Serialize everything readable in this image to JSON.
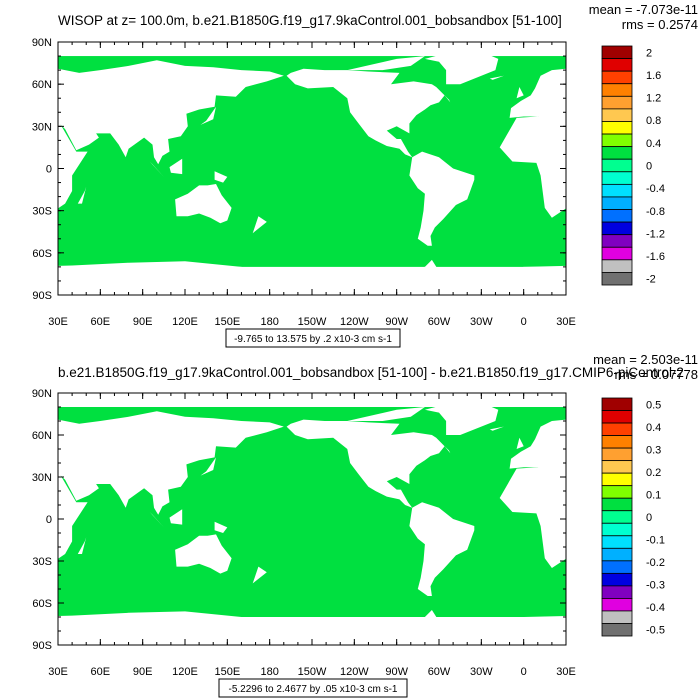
{
  "chart_data": [
    {
      "type": "heatmap",
      "title": "WISOP at z= 100.0m, b.e21.B1850G.f19_g17.9kaControl.001_bobsandbox [51-100]",
      "stats": [
        "mean = -7.073e-11",
        "rms = 0.2574"
      ],
      "subtitle": "-9.765 to 13.575 by .2 x10-3 cm s-1",
      "y_ticks": [
        "90N",
        "60N",
        "30N",
        "0",
        "30S",
        "60S",
        "90S"
      ],
      "x_ticks": [
        "30E",
        "60E",
        "90E",
        "120E",
        "150E",
        "180",
        "150W",
        "120W",
        "90W",
        "60W",
        "30W",
        "0",
        "30E"
      ],
      "ylim": [
        -90,
        90
      ],
      "xlim": [
        30,
        390
      ],
      "colorbar_labels": [
        "2",
        "1.6",
        "1.2",
        "0.8",
        "0.4",
        "0",
        "-0.4",
        "-0.8",
        "-1.2",
        "-1.6",
        "-2"
      ],
      "colorbar_colors": [
        "#a00000",
        "#e00000",
        "#ff4000",
        "#ff8000",
        "#ffa030",
        "#ffc850",
        "#ffff00",
        "#80ff00",
        "#00e040",
        "#00ff90",
        "#00ffd0",
        "#00e0ff",
        "#00b0ff",
        "#0070ff",
        "#0000e0",
        "#8000c0",
        "#e000e0",
        "#c0c0c0",
        "#707070"
      ]
    },
    {
      "type": "heatmap",
      "title": "b.e21.B1850G.f19_g17.9kaControl.001_bobsandbox [51-100] - b.e21.B1850.f19_g17.CMIP6-piControl-2",
      "stats": [
        "mean = 2.503e-11",
        "rms = 0.07778"
      ],
      "subtitle": "-5.2296 to 2.4677 by .05 x10-3 cm s-1",
      "y_ticks": [
        "90N",
        "60N",
        "30N",
        "0",
        "30S",
        "60S",
        "90S"
      ],
      "x_ticks": [
        "30E",
        "60E",
        "90E",
        "120E",
        "150E",
        "180",
        "150W",
        "120W",
        "90W",
        "60W",
        "30W",
        "0",
        "30E"
      ],
      "ylim": [
        -90,
        90
      ],
      "xlim": [
        30,
        390
      ],
      "colorbar_labels": [
        "0.5",
        "0.4",
        "0.3",
        "0.2",
        "0.1",
        "0",
        "-0.1",
        "-0.2",
        "-0.3",
        "-0.4",
        "-0.5"
      ],
      "colorbar_colors": [
        "#a00000",
        "#e00000",
        "#ff4000",
        "#ff8000",
        "#ffa030",
        "#ffc850",
        "#ffff00",
        "#80ff00",
        "#00e040",
        "#00ff90",
        "#00ffd0",
        "#00e0ff",
        "#00b0ff",
        "#0070ff",
        "#0000e0",
        "#8000c0",
        "#e000e0",
        "#c0c0c0",
        "#707070"
      ]
    }
  ]
}
